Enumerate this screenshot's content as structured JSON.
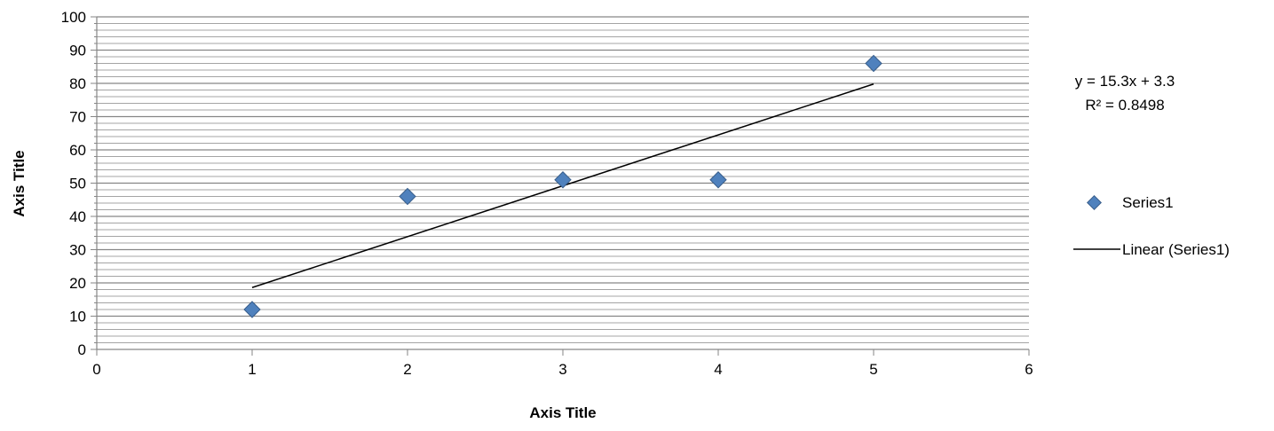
{
  "chart_data": {
    "type": "scatter",
    "title": "",
    "xlabel": "Axis Title",
    "ylabel": "Axis Title",
    "xlim": [
      0,
      6
    ],
    "ylim": [
      0,
      100
    ],
    "x_ticks": [
      0,
      1,
      2,
      3,
      4,
      5,
      6
    ],
    "y_ticks": [
      0,
      10,
      20,
      30,
      40,
      50,
      60,
      70,
      80,
      90,
      100
    ],
    "y_minor_step": 2,
    "grid": true,
    "series": [
      {
        "name": "Series1",
        "marker": "diamond",
        "color": "#4F81BD",
        "x": [
          1,
          2,
          3,
          4,
          5
        ],
        "y": [
          12,
          46,
          51,
          51,
          86
        ]
      }
    ],
    "trendline": {
      "name": "Linear (Series1)",
      "type": "linear",
      "slope": 15.3,
      "intercept": 3.3,
      "x_range": [
        1,
        5
      ],
      "color": "#000000",
      "equation": "y = 15.3x + 3.3",
      "r_squared": "R² = 0.8498"
    },
    "legend_position": "right",
    "colors": {
      "grid": "#868686",
      "axis": "#868686",
      "marker_edge": "#385D8A"
    }
  }
}
